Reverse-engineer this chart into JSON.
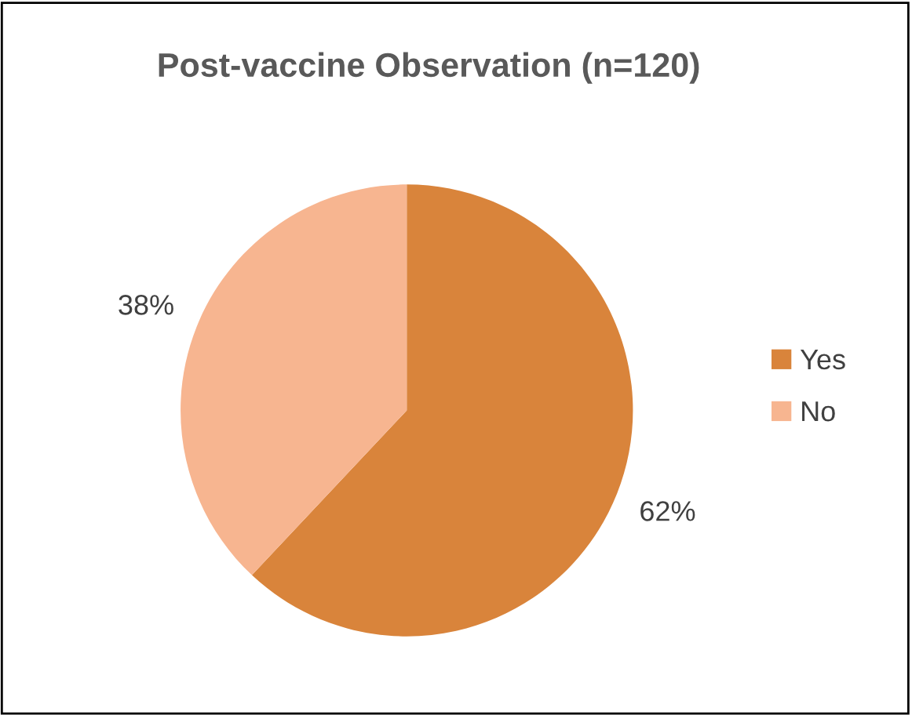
{
  "chart_data": {
    "type": "pie",
    "title": "Post-vaccine Observation (n=120)",
    "categories": [
      "Yes",
      "No"
    ],
    "values": [
      62,
      38
    ],
    "value_labels": [
      "62%",
      "38%"
    ],
    "colors": [
      "#d9843b",
      "#f7b590"
    ],
    "legend": "right"
  }
}
